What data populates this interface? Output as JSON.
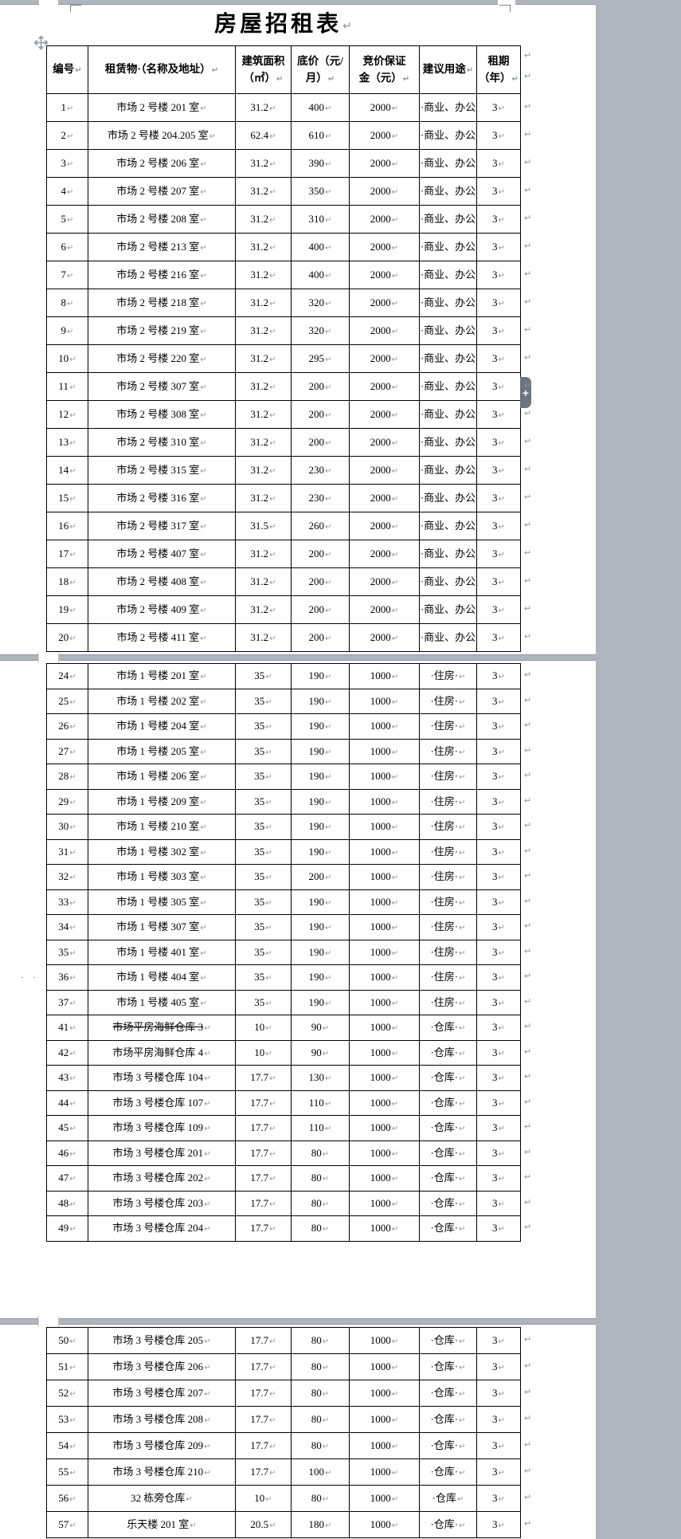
{
  "title": {
    "text": "房屋招租表"
  },
  "marks": {
    "pilcrow": "↵",
    "plus": "+",
    "left_dots": "· ·"
  },
  "columns": [
    {
      "key": "id",
      "label": "编号"
    },
    {
      "key": "name",
      "label": "租赁物·（名称及地址）"
    },
    {
      "key": "area",
      "label": "建筑面积\n（㎡）"
    },
    {
      "key": "price",
      "label": "底价（元/\n月）"
    },
    {
      "key": "deposit",
      "label": "竞价保证\n金（元）"
    },
    {
      "key": "use",
      "label": "建议用途"
    },
    {
      "key": "term",
      "label": "租期\n（年）"
    }
  ],
  "rows": [
    {
      "page": 1,
      "id": "1",
      "name": "市场 2 号楼 201 室",
      "area": "31.2",
      "price": "400",
      "deposit": "2000",
      "use": "·商业、办公",
      "useCr": false,
      "term": "3"
    },
    {
      "page": 1,
      "id": "2",
      "name": "市场 2 号楼 204.205 室",
      "area": "62.4",
      "price": "610",
      "deposit": "2000",
      "use": "·商业、办公",
      "useCr": false,
      "term": "3"
    },
    {
      "page": 1,
      "id": "3",
      "name": "市场 2 号楼 206 室",
      "area": "31.2",
      "price": "390",
      "deposit": "2000",
      "use": "·商业、办公",
      "useCr": false,
      "term": "3"
    },
    {
      "page": 1,
      "id": "4",
      "name": "市场 2 号楼 207 室",
      "area": "31.2",
      "price": "350",
      "deposit": "2000",
      "use": "·商业、办公",
      "useCr": false,
      "term": "3"
    },
    {
      "page": 1,
      "id": "5",
      "name": "市场 2 号楼 208 室",
      "area": "31.2",
      "price": "310",
      "deposit": "2000",
      "use": "·商业、办公",
      "useCr": false,
      "term": "3"
    },
    {
      "page": 1,
      "id": "6",
      "name": "市场 2 号楼 213 室",
      "area": "31.2",
      "price": "400",
      "deposit": "2000",
      "use": "·商业、办公",
      "useCr": false,
      "term": "3"
    },
    {
      "page": 1,
      "id": "7",
      "name": "市场 2 号楼 216 室",
      "area": "31.2",
      "price": "400",
      "deposit": "2000",
      "use": "·商业、办公",
      "useCr": false,
      "term": "3"
    },
    {
      "page": 1,
      "id": "8",
      "name": "市场 2 号楼 218 室",
      "area": "31.2",
      "price": "320",
      "deposit": "2000",
      "use": "·商业、办公",
      "useCr": false,
      "term": "3"
    },
    {
      "page": 1,
      "id": "9",
      "name": "市场 2 号楼 219 室",
      "area": "31.2",
      "price": "320",
      "deposit": "2000",
      "use": "·商业、办公",
      "useCr": false,
      "term": "3"
    },
    {
      "page": 1,
      "id": "10",
      "name": "市场 2 号楼 220 室",
      "area": "31.2",
      "price": "295",
      "deposit": "2000",
      "use": "·商业、办公",
      "useCr": false,
      "term": "3"
    },
    {
      "page": 1,
      "id": "11",
      "name": "市场 2 号楼 307 室",
      "area": "31.2",
      "price": "200",
      "deposit": "2000",
      "use": "·商业、办公",
      "useCr": false,
      "term": "3"
    },
    {
      "page": 1,
      "id": "12",
      "name": "市场 2 号楼 308 室",
      "area": "31.2",
      "price": "200",
      "deposit": "2000",
      "use": "·商业、办公",
      "useCr": false,
      "term": "3"
    },
    {
      "page": 1,
      "id": "13",
      "name": "市场 2 号楼 310 室",
      "area": "31.2",
      "price": "200",
      "deposit": "2000",
      "use": "·商业、办公",
      "useCr": false,
      "term": "3"
    },
    {
      "page": 1,
      "id": "14",
      "name": "市场 2 号楼 315 室",
      "area": "31.2",
      "price": "230",
      "deposit": "2000",
      "use": "·商业、办公",
      "useCr": false,
      "term": "3"
    },
    {
      "page": 1,
      "id": "15",
      "name": "市场 2 号楼 316 室",
      "area": "31.2",
      "price": "230",
      "deposit": "2000",
      "use": "·商业、办公",
      "useCr": false,
      "term": "3"
    },
    {
      "page": 1,
      "id": "16",
      "name": "市场 2 号楼 317 室",
      "area": "31.5",
      "price": "260",
      "deposit": "2000",
      "use": "·商业、办公",
      "useCr": false,
      "term": "3"
    },
    {
      "page": 1,
      "id": "17",
      "name": "市场 2 号楼 407 室",
      "area": "31.2",
      "price": "200",
      "deposit": "2000",
      "use": "·商业、办公",
      "useCr": false,
      "term": "3"
    },
    {
      "page": 1,
      "id": "18",
      "name": "市场 2 号楼 408 室",
      "area": "31.2",
      "price": "200",
      "deposit": "2000",
      "use": "·商业、办公",
      "useCr": false,
      "term": "3"
    },
    {
      "page": 1,
      "id": "19",
      "name": "市场 2 号楼 409 室",
      "area": "31.2",
      "price": "200",
      "deposit": "2000",
      "use": "·商业、办公",
      "useCr": false,
      "term": "3"
    },
    {
      "page": 1,
      "id": "20",
      "name": "市场 2 号楼 411 室",
      "area": "31.2",
      "price": "200",
      "deposit": "2000",
      "use": "·商业、办公",
      "useCr": false,
      "term": "3"
    },
    {
      "page": 2,
      "id": "24",
      "name": "市场 1 号楼 201 室",
      "area": "35",
      "price": "190",
      "deposit": "1000",
      "use": "·住房·",
      "useCr": true,
      "term": "3"
    },
    {
      "page": 2,
      "id": "25",
      "name": "市场 1 号楼 202 室",
      "area": "35",
      "price": "190",
      "deposit": "1000",
      "use": "·住房·",
      "useCr": true,
      "term": "3"
    },
    {
      "page": 2,
      "id": "26",
      "name": "市场 1 号楼 204 室",
      "area": "35",
      "price": "190",
      "deposit": "1000",
      "use": "·住房·",
      "useCr": true,
      "term": "3"
    },
    {
      "page": 2,
      "id": "27",
      "name": "市场 1 号楼 205 室",
      "area": "35",
      "price": "190",
      "deposit": "1000",
      "use": "·住房·",
      "useCr": true,
      "term": "3"
    },
    {
      "page": 2,
      "id": "28",
      "name": "市场 1 号楼 206 室",
      "area": "35",
      "price": "190",
      "deposit": "1000",
      "use": "·住房·",
      "useCr": true,
      "term": "3"
    },
    {
      "page": 2,
      "id": "29",
      "name": "市场 1 号楼 209 室",
      "area": "35",
      "price": "190",
      "deposit": "1000",
      "use": "·住房·",
      "useCr": true,
      "term": "3"
    },
    {
      "page": 2,
      "id": "30",
      "name": "市场 1 号楼 210 室",
      "area": "35",
      "price": "190",
      "deposit": "1000",
      "use": "·住房·",
      "useCr": true,
      "term": "3"
    },
    {
      "page": 2,
      "id": "31",
      "name": "市场 1 号楼 302 室",
      "area": "35",
      "price": "190",
      "deposit": "1000",
      "use": "·住房·",
      "useCr": true,
      "term": "3"
    },
    {
      "page": 2,
      "id": "32",
      "name": "市场 1 号楼 303 室",
      "area": "35",
      "price": "200",
      "deposit": "1000",
      "use": "·住房·",
      "useCr": true,
      "term": "3"
    },
    {
      "page": 2,
      "id": "33",
      "name": "市场 1 号楼 305 室",
      "area": "35",
      "price": "190",
      "deposit": "1000",
      "use": "·住房·",
      "useCr": true,
      "term": "3"
    },
    {
      "page": 2,
      "id": "34",
      "name": "市场 1 号楼 307 室",
      "area": "35",
      "price": "190",
      "deposit": "1000",
      "use": "·住房·",
      "useCr": true,
      "term": "3"
    },
    {
      "page": 2,
      "id": "35",
      "name": "市场 1 号楼 401 室",
      "area": "35",
      "price": "190",
      "deposit": "1000",
      "use": "·住房·",
      "useCr": true,
      "term": "3"
    },
    {
      "page": 2,
      "id": "36",
      "name": "市场 1 号楼 404 室",
      "area": "35",
      "price": "190",
      "deposit": "1000",
      "use": "·住房·",
      "useCr": true,
      "term": "3",
      "left_dots": true
    },
    {
      "page": 2,
      "id": "37",
      "name": "市场 1 号楼 405 室",
      "area": "35",
      "price": "190",
      "deposit": "1000",
      "use": "·住房·",
      "useCr": true,
      "term": "3"
    },
    {
      "page": 2,
      "id": "41",
      "name": "市场平房海鲜仓库 3",
      "area": "10",
      "price": "90",
      "deposit": "1000",
      "use": "·仓库·",
      "useCr": true,
      "term": "3",
      "strike": true
    },
    {
      "page": 2,
      "id": "42",
      "name": "市场平房海鲜仓库 4",
      "area": "10",
      "price": "90",
      "deposit": "1000",
      "use": "·仓库·",
      "useCr": true,
      "term": "3"
    },
    {
      "page": 2,
      "id": "43",
      "name": "市场 3 号楼仓库 104",
      "area": "17.7",
      "price": "130",
      "deposit": "1000",
      "use": "·仓库·",
      "useCr": true,
      "term": "3"
    },
    {
      "page": 2,
      "id": "44",
      "name": "市场 3 号楼仓库 107",
      "area": "17.7",
      "price": "110",
      "deposit": "1000",
      "use": "·仓库·",
      "useCr": true,
      "term": "3"
    },
    {
      "page": 2,
      "id": "45",
      "name": "市场 3 号楼仓库 109",
      "area": "17.7",
      "price": "110",
      "deposit": "1000",
      "use": "·仓库·",
      "useCr": true,
      "term": "3"
    },
    {
      "page": 2,
      "id": "46",
      "name": "市场 3 号楼仓库 201",
      "area": "17.7",
      "price": "80",
      "deposit": "1000",
      "use": "·仓库·",
      "useCr": true,
      "term": "3"
    },
    {
      "page": 2,
      "id": "47",
      "name": "市场 3 号楼仓库 202",
      "area": "17.7",
      "price": "80",
      "deposit": "1000",
      "use": "·仓库·",
      "useCr": true,
      "term": "3"
    },
    {
      "page": 2,
      "id": "48",
      "name": "市场 3 号楼仓库 203",
      "area": "17.7",
      "price": "80",
      "deposit": "1000",
      "use": "·仓库·",
      "useCr": true,
      "term": "3"
    },
    {
      "page": 2,
      "id": "49",
      "name": "市场 3 号楼仓库 204",
      "area": "17.7",
      "price": "80",
      "deposit": "1000",
      "use": "·仓库·",
      "useCr": true,
      "term": "3"
    },
    {
      "page": 3,
      "id": "50",
      "name": "市场 3 号楼仓库 205",
      "area": "17.7",
      "price": "80",
      "deposit": "1000",
      "use": "·仓库·",
      "useCr": true,
      "term": "3"
    },
    {
      "page": 3,
      "id": "51",
      "name": "市场 3 号楼仓库 206",
      "area": "17.7",
      "price": "80",
      "deposit": "1000",
      "use": "·仓库·",
      "useCr": true,
      "term": "3"
    },
    {
      "page": 3,
      "id": "52",
      "name": "市场 3 号楼仓库 207",
      "area": "17.7",
      "price": "80",
      "deposit": "1000",
      "use": "·仓库·",
      "useCr": true,
      "term": "3"
    },
    {
      "page": 3,
      "id": "53",
      "name": "市场 3 号楼仓库 208",
      "area": "17.7",
      "price": "80",
      "deposit": "1000",
      "use": "·仓库·",
      "useCr": true,
      "term": "3"
    },
    {
      "page": 3,
      "id": "54",
      "name": "市场 3 号楼仓库 209",
      "area": "17.7",
      "price": "80",
      "deposit": "1000",
      "use": "·仓库·",
      "useCr": true,
      "term": "3"
    },
    {
      "page": 3,
      "id": "55",
      "name": "市场 3 号楼仓库 210",
      "area": "17.7",
      "price": "100",
      "deposit": "1000",
      "use": "·仓库·",
      "useCr": true,
      "term": "3"
    },
    {
      "page": 3,
      "id": "56",
      "name": "32 栋旁仓库",
      "area": "10",
      "price": "80",
      "deposit": "1000",
      "use": "·仓库",
      "useCr": true,
      "term": "3"
    },
    {
      "page": 3,
      "id": "57",
      "name": "乐天楼 201 室",
      "area": "20.5",
      "price": "180",
      "deposit": "1000",
      "use": "·仓库·",
      "useCr": true,
      "term": "3"
    }
  ]
}
